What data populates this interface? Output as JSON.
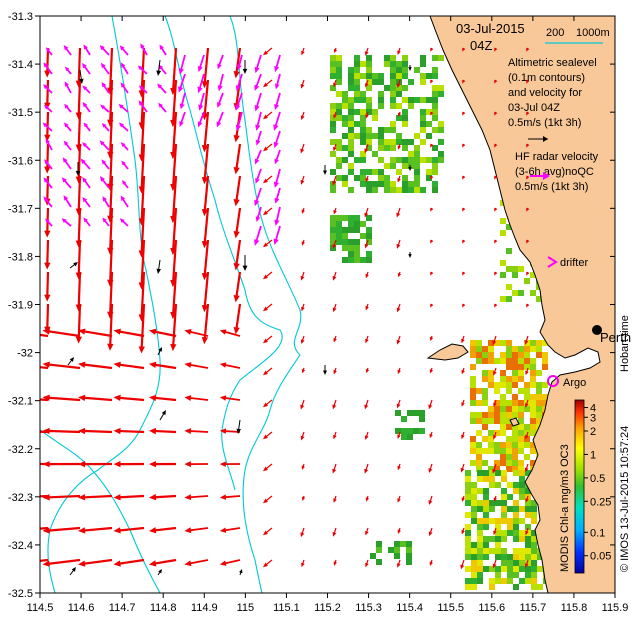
{
  "map": {
    "title_date": "03-Jul-2015",
    "title_time": "04Z",
    "scale_bar": {
      "depth_a": "200",
      "depth_b": "1000m"
    },
    "legend": {
      "altimetric_lines": [
        "Altimetric sealevel",
        "(0.1m contours)",
        "and velocity for",
        "03-Jul 04Z",
        "0.5m/s (1kt 3h)"
      ],
      "hf_radar_lines": [
        "HF radar velocity",
        "(3-6h avg)noQC",
        "0.5m/s (1kt 3h)"
      ],
      "drifter": "drifter",
      "argo": "Argo",
      "city": "Perth"
    },
    "credits": {
      "hobart_time": "Hobart time",
      "imos": "© IMOS 13-Jul-2015 10:57:24",
      "colorbar_title": "MODIS Chl-a mg/m3 OC3"
    },
    "colors": {
      "land": "#f8c898",
      "current_arrow": "#ee0000",
      "hf_radar_arrow": "#ff00ff",
      "bathymetry_contour": "#00c8d8",
      "drifter_arrow": "#000000",
      "argo_marker": "#ee00ee"
    },
    "x_ticks": [
      "114.5",
      "114.6",
      "114.7",
      "114.8",
      "114.9",
      "115",
      "115.1",
      "115.2",
      "115.3",
      "115.4",
      "115.5",
      "115.6",
      "115.7",
      "115.8",
      "115.9"
    ],
    "y_ticks": [
      "-31.3",
      "-31.4",
      "-31.5",
      "-31.6",
      "-31.7",
      "-31.8",
      "-31.9",
      "-32",
      "-32.1",
      "-32.2",
      "-32.3",
      "-32.4",
      "-32.5"
    ],
    "lon_range": [
      114.5,
      115.9
    ],
    "lat_range": [
      -32.5,
      -31.3
    ],
    "colorbar": {
      "labels": [
        "4",
        "3",
        "2",
        "1",
        "0.5",
        "0.25",
        "0.1",
        "0.05"
      ],
      "range_log": [
        0.03,
        5
      ]
    }
  }
}
